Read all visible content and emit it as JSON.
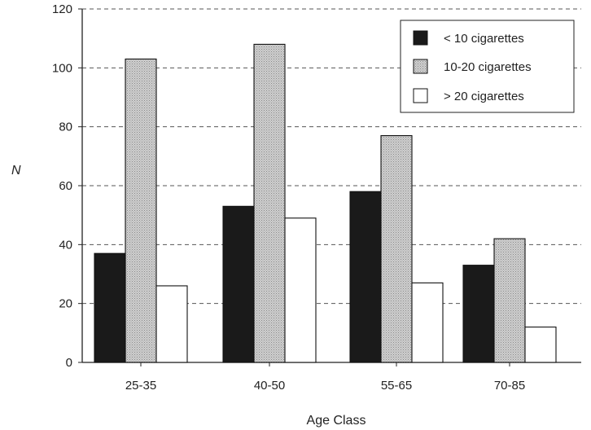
{
  "chart_data": {
    "type": "bar",
    "title": "",
    "xlabel": "Age Class",
    "ylabel": "N",
    "ylim": [
      0,
      120
    ],
    "yticks": [
      "0",
      "20",
      "40",
      "60",
      "80",
      "100",
      "120"
    ],
    "grid": "horizontal-dashed",
    "legend_position": "top-right",
    "categories": [
      "25-35",
      "40-50",
      "55-65",
      "70-85"
    ],
    "series": [
      {
        "name": "< 10 cigarettes",
        "values": [
          37,
          53,
          58,
          33
        ],
        "fill": "#1a1a1a"
      },
      {
        "name": "10-20 cigarettes",
        "values": [
          103,
          108,
          77,
          42
        ],
        "fill": "#c4c4c4"
      },
      {
        "name": "> 20 cigarettes",
        "values": [
          26,
          49,
          27,
          12
        ],
        "fill": "#ffffff"
      }
    ]
  }
}
